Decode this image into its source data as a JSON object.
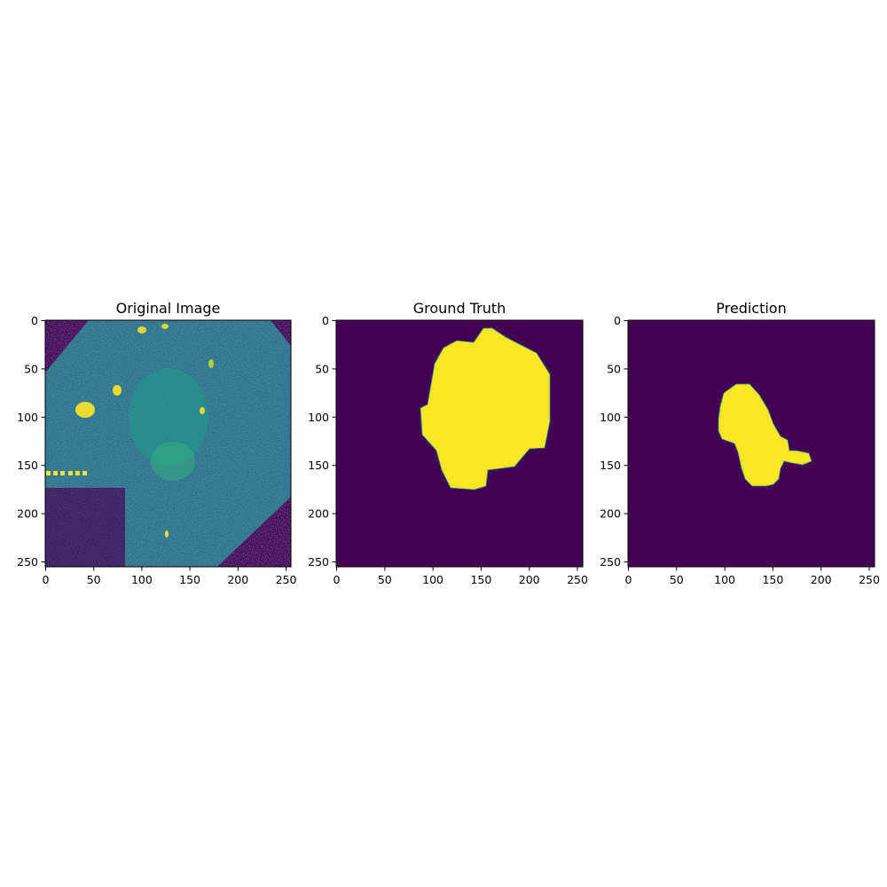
{
  "colors": {
    "background_low": "#440154",
    "mid_teal": "#21918c",
    "mid_blue": "#3b528b",
    "high_yellow": "#fde725",
    "axis": "#000000"
  },
  "axis_range": [
    0,
    255
  ],
  "ticks": {
    "x": [
      "0",
      "50",
      "100",
      "150",
      "200",
      "250"
    ],
    "y": [
      "0",
      "50",
      "100",
      "150",
      "200",
      "250"
    ]
  },
  "panels": [
    {
      "title": "Original Image",
      "kind": "image"
    },
    {
      "title": "Ground Truth",
      "kind": "mask"
    },
    {
      "title": "Prediction",
      "kind": "mask"
    }
  ]
}
